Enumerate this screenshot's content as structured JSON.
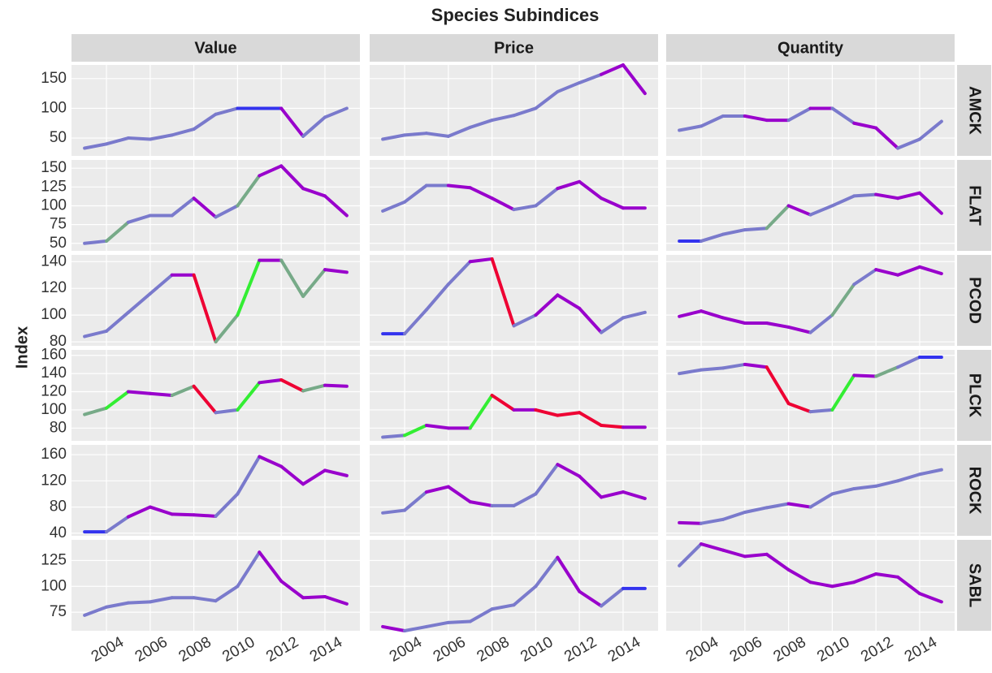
{
  "chart_data": {
    "type": "line",
    "title": "Species Subindices",
    "y_label": "Index",
    "columns": [
      "Value",
      "Price",
      "Quantity"
    ],
    "x": [
      2003,
      2004,
      2005,
      2006,
      2007,
      2008,
      2009,
      2010,
      2011,
      2012,
      2013,
      2014,
      2015
    ],
    "xlim": [
      2002.4,
      2015.6
    ],
    "xticks": [
      2004,
      2006,
      2008,
      2010,
      2012,
      2014
    ],
    "grid": true,
    "rows": [
      {
        "name": "AMCK",
        "ylim": [
          20,
          173
        ],
        "yticks": [
          50,
          100,
          150
        ],
        "series": [
          {
            "values": [
              33,
              40,
              50,
              48,
              55,
              65,
              90,
              100,
              100,
              100,
              53,
              85,
              100
            ],
            "colors": [
              "#7a7acc",
              "#7a7acc",
              "#7a7acc",
              "#7a7acc",
              "#7a7acc",
              "#7a7acc",
              "#7a7acc",
              "#3333ee",
              "#3333ee",
              "#9900cc",
              "#7a7acc",
              "#7a7acc"
            ]
          },
          {
            "values": [
              48,
              55,
              58,
              53,
              68,
              80,
              88,
              100,
              128,
              143,
              157,
              173,
              125
            ],
            "colors": [
              "#7a7acc",
              "#7a7acc",
              "#7a7acc",
              "#7a7acc",
              "#7a7acc",
              "#7a7acc",
              "#7a7acc",
              "#7a7acc",
              "#7a7acc",
              "#7a7acc",
              "#9900cc",
              "#9900cc"
            ]
          },
          {
            "values": [
              63,
              70,
              87,
              87,
              80,
              80,
              100,
              100,
              75,
              67,
              33,
              48,
              78
            ],
            "colors": [
              "#7a7acc",
              "#7a7acc",
              "#7a7acc",
              "#9900cc",
              "#9900cc",
              "#7a7acc",
              "#9900cc",
              "#7a7acc",
              "#9900cc",
              "#9900cc",
              "#7a7acc",
              "#7a7acc"
            ]
          }
        ]
      },
      {
        "name": "FLAT",
        "ylim": [
          40,
          161
        ],
        "yticks": [
          50,
          75,
          100,
          125,
          150
        ],
        "series": [
          {
            "values": [
              50,
              53,
              78,
              87,
              87,
              110,
              85,
              100,
              140,
              153,
              123,
              113,
              87
            ],
            "colors": [
              "#7a7acc",
              "#77aa88",
              "#7a7acc",
              "#7a7acc",
              "#7a7acc",
              "#9900cc",
              "#7a7acc",
              "#77aa88",
              "#9900cc",
              "#9900cc",
              "#9900cc",
              "#9900cc"
            ]
          },
          {
            "values": [
              93,
              105,
              127,
              127,
              124,
              110,
              95,
              100,
              123,
              132,
              110,
              97,
              97
            ],
            "colors": [
              "#7a7acc",
              "#7a7acc",
              "#7a7acc",
              "#9900cc",
              "#9900cc",
              "#9900cc",
              "#7a7acc",
              "#7a7acc",
              "#9900cc",
              "#9900cc",
              "#9900cc",
              "#9900cc"
            ]
          },
          {
            "values": [
              53,
              53,
              62,
              68,
              70,
              100,
              88,
              100,
              113,
              115,
              110,
              117,
              90
            ],
            "colors": [
              "#3333ee",
              "#7a7acc",
              "#7a7acc",
              "#7a7acc",
              "#77aa88",
              "#9900cc",
              "#7a7acc",
              "#7a7acc",
              "#7a7acc",
              "#9900cc",
              "#9900cc",
              "#9900cc"
            ]
          }
        ]
      },
      {
        "name": "PCOD",
        "ylim": [
          77,
          145
        ],
        "yticks": [
          80,
          100,
          120,
          140
        ],
        "series": [
          {
            "values": [
              84,
              88,
              102,
              116,
              130,
              130,
              80,
              100,
              141,
              141,
              114,
              134,
              132
            ],
            "colors": [
              "#7a7acc",
              "#7a7acc",
              "#7a7acc",
              "#7a7acc",
              "#9900cc",
              "#ee0033",
              "#77aa88",
              "#33ee33",
              "#9900cc",
              "#77aa88",
              "#77aa88",
              "#9900cc"
            ]
          },
          {
            "values": [
              86,
              86,
              104,
              123,
              140,
              142,
              92,
              100,
              115,
              105,
              87,
              98,
              102
            ],
            "colors": [
              "#3333ee",
              "#7a7acc",
              "#7a7acc",
              "#7a7acc",
              "#9900cc",
              "#ee0033",
              "#7a7acc",
              "#9900cc",
              "#9900cc",
              "#9900cc",
              "#7a7acc",
              "#7a7acc"
            ]
          },
          {
            "values": [
              99,
              103,
              98,
              94,
              94,
              91,
              87,
              100,
              123,
              134,
              130,
              136,
              131
            ],
            "colors": [
              "#9900cc",
              "#9900cc",
              "#9900cc",
              "#9900cc",
              "#9900cc",
              "#9900cc",
              "#7a7acc",
              "#77aa88",
              "#7a7acc",
              "#9900cc",
              "#9900cc",
              "#9900cc"
            ]
          }
        ]
      },
      {
        "name": "PLCK",
        "ylim": [
          66,
          166
        ],
        "yticks": [
          80,
          100,
          120,
          140,
          160
        ],
        "series": [
          {
            "values": [
              95,
              102,
              120,
              118,
              116,
              126,
              97,
              100,
              130,
              133,
              121,
              127,
              126
            ],
            "colors": [
              "#77aa88",
              "#33ee33",
              "#9900cc",
              "#9900cc",
              "#77aa88",
              "#ee0033",
              "#7a7acc",
              "#33ee33",
              "#9900cc",
              "#ee0033",
              "#77aa88",
              "#9900cc"
            ]
          },
          {
            "values": [
              70,
              72,
              83,
              80,
              80,
              116,
              100,
              100,
              94,
              97,
              83,
              81,
              81
            ],
            "colors": [
              "#7a7acc",
              "#33ee33",
              "#9900cc",
              "#9900cc",
              "#33ee33",
              "#ee0033",
              "#9900cc",
              "#ee0033",
              "#ee0033",
              "#ee0033",
              "#ee0033",
              "#9900cc"
            ]
          },
          {
            "values": [
              140,
              144,
              146,
              150,
              147,
              107,
              98,
              100,
              138,
              137,
              147,
              158,
              158
            ],
            "colors": [
              "#7a7acc",
              "#7a7acc",
              "#7a7acc",
              "#9900cc",
              "#ee0033",
              "#ee0033",
              "#7a7acc",
              "#33ee33",
              "#9900cc",
              "#77aa88",
              "#7a7acc",
              "#3333ee"
            ]
          }
        ]
      },
      {
        "name": "ROCK",
        "ylim": [
          36,
          175
        ],
        "yticks": [
          40,
          80,
          120,
          160
        ],
        "series": [
          {
            "values": [
              42,
              42,
              65,
              80,
              69,
              68,
              66,
              100,
              157,
              142,
              115,
              136,
              128
            ],
            "colors": [
              "#3333ee",
              "#7a7acc",
              "#9900cc",
              "#9900cc",
              "#9900cc",
              "#9900cc",
              "#7a7acc",
              "#7a7acc",
              "#9900cc",
              "#9900cc",
              "#9900cc",
              "#9900cc"
            ]
          },
          {
            "values": [
              71,
              75,
              103,
              111,
              88,
              82,
              82,
              100,
              145,
              127,
              95,
              103,
              93
            ],
            "colors": [
              "#7a7acc",
              "#7a7acc",
              "#9900cc",
              "#9900cc",
              "#9900cc",
              "#7a7acc",
              "#7a7acc",
              "#7a7acc",
              "#9900cc",
              "#9900cc",
              "#9900cc",
              "#9900cc"
            ]
          },
          {
            "values": [
              56,
              55,
              61,
              72,
              79,
              85,
              80,
              100,
              108,
              112,
              120,
              130,
              137
            ],
            "colors": [
              "#9900cc",
              "#7a7acc",
              "#7a7acc",
              "#7a7acc",
              "#7a7acc",
              "#9900cc",
              "#7a7acc",
              "#7a7acc",
              "#7a7acc",
              "#7a7acc",
              "#7a7acc",
              "#7a7acc"
            ]
          }
        ]
      },
      {
        "name": "SABL",
        "ylim": [
          57,
          145
        ],
        "yticks": [
          75,
          100,
          125
        ],
        "series": [
          {
            "values": [
              72,
              80,
              84,
              85,
              89,
              89,
              86,
              100,
              133,
              105,
              89,
              90,
              83
            ],
            "colors": [
              "#7a7acc",
              "#7a7acc",
              "#7a7acc",
              "#7a7acc",
              "#7a7acc",
              "#7a7acc",
              "#7a7acc",
              "#7a7acc",
              "#9900cc",
              "#9900cc",
              "#9900cc",
              "#9900cc"
            ]
          },
          {
            "values": [
              61,
              57,
              61,
              65,
              66,
              78,
              82,
              100,
              128,
              95,
              81,
              98,
              98
            ],
            "colors": [
              "#9900cc",
              "#7a7acc",
              "#7a7acc",
              "#7a7acc",
              "#7a7acc",
              "#7a7acc",
              "#7a7acc",
              "#7a7acc",
              "#9900cc",
              "#9900cc",
              "#7a7acc",
              "#3333ee"
            ]
          },
          {
            "values": [
              120,
              141,
              135,
              129,
              131,
              116,
              104,
              100,
              104,
              112,
              109,
              93,
              85
            ],
            "colors": [
              "#7a7acc",
              "#9900cc",
              "#9900cc",
              "#9900cc",
              "#9900cc",
              "#9900cc",
              "#9900cc",
              "#9900cc",
              "#9900cc",
              "#9900cc",
              "#9900cc",
              "#9900cc"
            ]
          }
        ]
      }
    ]
  }
}
